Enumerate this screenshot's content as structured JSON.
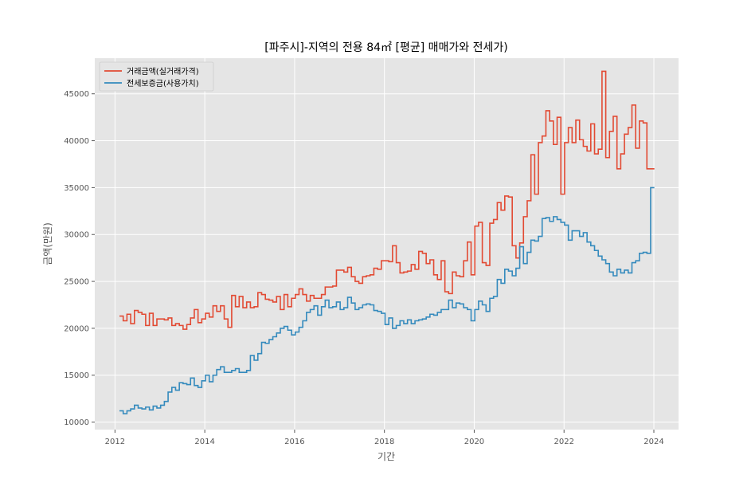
{
  "chart_data": {
    "type": "line",
    "drawstyle": "steps",
    "title": "[파주시]-지역의 전용 84㎡ [평균] 매매가와 전세가)",
    "xlabel": "기간",
    "ylabel": "금액(만원)",
    "xlim": [
      2011.55,
      2024.55
    ],
    "ylim": [
      9200,
      48800
    ],
    "x_ticks": [
      2012,
      2014,
      2016,
      2018,
      2020,
      2022,
      2024
    ],
    "y_ticks": [
      10000,
      15000,
      20000,
      25000,
      30000,
      35000,
      40000,
      45000
    ],
    "grid": true,
    "legend_position": "top-left",
    "x_start": 2012.1,
    "x_step": 0.0833,
    "series": [
      {
        "name": "거래금액(실거래가격)",
        "color": "#E24A33",
        "values": [
          21300,
          20800,
          21500,
          20500,
          21900,
          21700,
          21500,
          20300,
          21600,
          20300,
          21000,
          21000,
          20900,
          21100,
          20300,
          20500,
          20300,
          19900,
          20400,
          21100,
          22000,
          20600,
          21000,
          21600,
          21200,
          22400,
          21800,
          22400,
          21000,
          20100,
          23500,
          22300,
          23400,
          22200,
          22800,
          22200,
          22300,
          23800,
          23600,
          23100,
          23000,
          22800,
          23400,
          22000,
          23600,
          22300,
          23200,
          23600,
          24200,
          23600,
          22900,
          23500,
          23200,
          23200,
          23600,
          24400,
          24400,
          24500,
          26200,
          26200,
          26000,
          26500,
          25500,
          25000,
          24800,
          25500,
          25600,
          25700,
          26400,
          26300,
          27200,
          27200,
          27100,
          28800,
          27000,
          25900,
          26000,
          26100,
          26800,
          26300,
          28200,
          28000,
          26900,
          27300,
          25700,
          25200,
          27200,
          23900,
          23700,
          26000,
          25600,
          25500,
          27200,
          29200,
          25700,
          30900,
          31300,
          27000,
          26700,
          31200,
          31600,
          33400,
          32600,
          34100,
          34000,
          28800,
          27500,
          29100,
          31900,
          33600,
          38500,
          34300,
          39800,
          40500,
          43200,
          42100,
          39600,
          42500,
          34300,
          39800,
          41400,
          39800,
          42200,
          40100,
          39400,
          38900,
          41800,
          38600,
          39100,
          47400,
          38200,
          41000,
          42600,
          37000,
          38600,
          40700,
          41400,
          43800,
          39200,
          42100,
          41900,
          37000,
          37000
        ],
        "end_value": 37000
      },
      {
        "name": "전세보증금(사용가치)",
        "color": "#348ABD",
        "values": [
          11200,
          10900,
          11200,
          11400,
          11800,
          11500,
          11400,
          11600,
          11300,
          11700,
          11500,
          11800,
          12200,
          13200,
          13700,
          13400,
          14200,
          14100,
          14000,
          14700,
          13900,
          13700,
          14400,
          15000,
          14300,
          15000,
          15600,
          15900,
          15300,
          15300,
          15500,
          15700,
          15300,
          15300,
          15500,
          17100,
          16600,
          17300,
          18500,
          18400,
          18800,
          19100,
          19500,
          20000,
          20200,
          19800,
          19300,
          19600,
          20100,
          20800,
          21700,
          22000,
          22400,
          21400,
          22300,
          23000,
          22200,
          22300,
          22800,
          22000,
          22200,
          23300,
          22700,
          22000,
          22200,
          22500,
          22600,
          22500,
          21900,
          21800,
          21600,
          20400,
          21100,
          20000,
          20300,
          20800,
          20500,
          20900,
          20500,
          20800,
          20900,
          21000,
          21200,
          21500,
          21400,
          21700,
          22000,
          22000,
          23000,
          22200,
          22700,
          22600,
          22200,
          22000,
          20800,
          22000,
          22900,
          22500,
          21800,
          23200,
          23400,
          25200,
          24800,
          26300,
          26100,
          25600,
          26400,
          28700,
          26900,
          28100,
          29400,
          29300,
          29800,
          31700,
          31800,
          31400,
          31900,
          31600,
          31300,
          31000,
          29400,
          30400,
          30400,
          29800,
          30200,
          29200,
          28800,
          28300,
          27700,
          27300,
          26900,
          26000,
          25600,
          26300,
          25900,
          26200,
          25900,
          27000,
          27200,
          28000,
          28100,
          28000,
          35000
        ],
        "end_value": 35000
      }
    ]
  }
}
